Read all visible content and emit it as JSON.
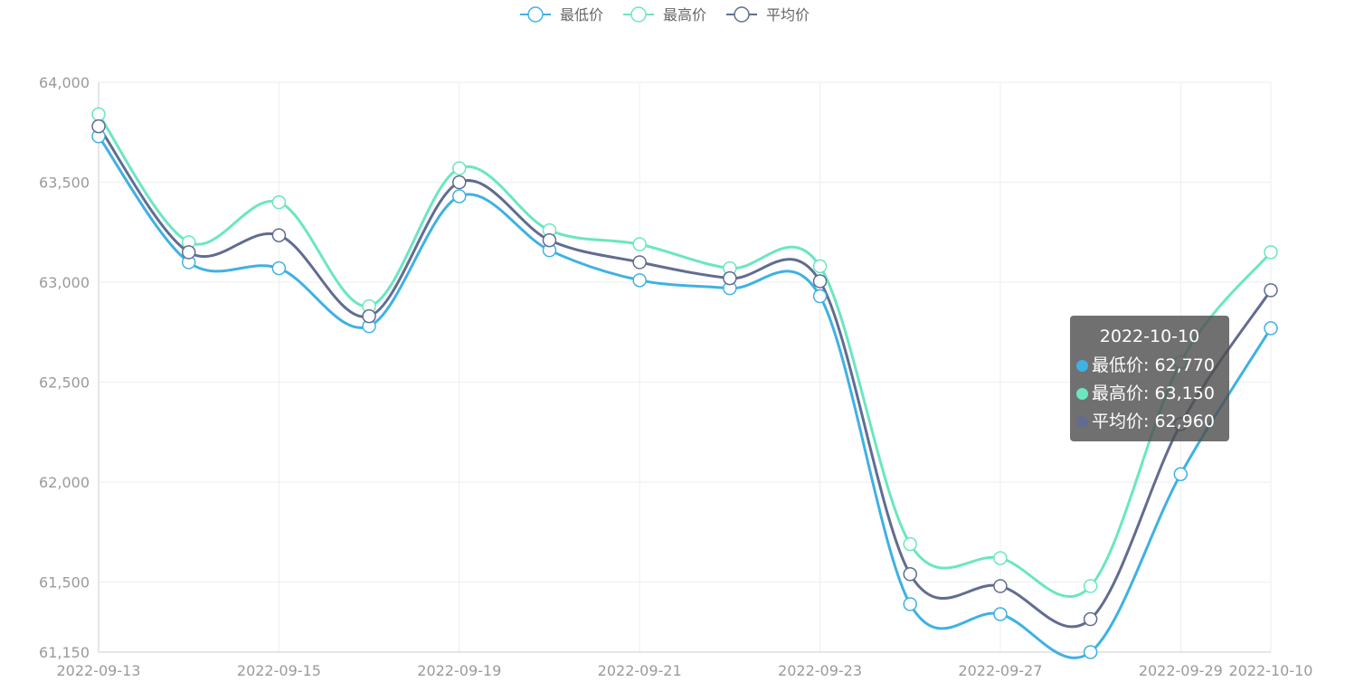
{
  "legend": [
    {
      "label": "最低价",
      "color": "#3fb1e3"
    },
    {
      "label": "最高价",
      "color": "#6be6c1"
    },
    {
      "label": "平均价",
      "color": "#626c91"
    }
  ],
  "tooltip": {
    "title": "2022-10-10",
    "rows": [
      {
        "label": "最低价",
        "value": "62,770",
        "color": "#3fb1e3"
      },
      {
        "label": "最高价",
        "value": "63,150",
        "color": "#6be6c1"
      },
      {
        "label": "平均价",
        "value": "62,960",
        "color": "#626c91"
      }
    ]
  },
  "chart_data": {
    "type": "line",
    "smooth": true,
    "grid": true,
    "legend_position": "top-center",
    "x": [
      "2022-09-13",
      "2022-09-14",
      "2022-09-15",
      "2022-09-16",
      "2022-09-19",
      "2022-09-20",
      "2022-09-21",
      "2022-09-22",
      "2022-09-23",
      "2022-09-26",
      "2022-09-27",
      "2022-09-28",
      "2022-09-29",
      "2022-10-10"
    ],
    "x_tick_labels": [
      "2022-09-13",
      "2022-09-15",
      "2022-09-19",
      "2022-09-21",
      "2022-09-23",
      "2022-09-27",
      "2022-09-29",
      "2022-10-10"
    ],
    "y_tick_labels": [
      "61,150",
      "61,500",
      "62,000",
      "62,500",
      "63,000",
      "63,500",
      "64,000"
    ],
    "y_ticks": [
      61150,
      61500,
      62000,
      62500,
      63000,
      63500,
      64000
    ],
    "ylim": [
      61150,
      64000
    ],
    "series": [
      {
        "name": "最低价",
        "color": "#3fb1e3",
        "values": [
          63730,
          63100,
          63070,
          62780,
          63430,
          63160,
          63010,
          62970,
          62930,
          61390,
          61340,
          61150,
          62040,
          62770
        ]
      },
      {
        "name": "最高价",
        "color": "#6be6c1",
        "values": [
          63840,
          63200,
          63400,
          62880,
          63570,
          63260,
          63190,
          63070,
          63080,
          61690,
          61620,
          61480,
          62600,
          63150
        ]
      },
      {
        "name": "平均价",
        "color": "#626c91",
        "values": [
          63780,
          63150,
          63235,
          62830,
          63500,
          63210,
          63100,
          63020,
          63005,
          61540,
          61480,
          61315,
          62290,
          62960
        ]
      }
    ]
  }
}
